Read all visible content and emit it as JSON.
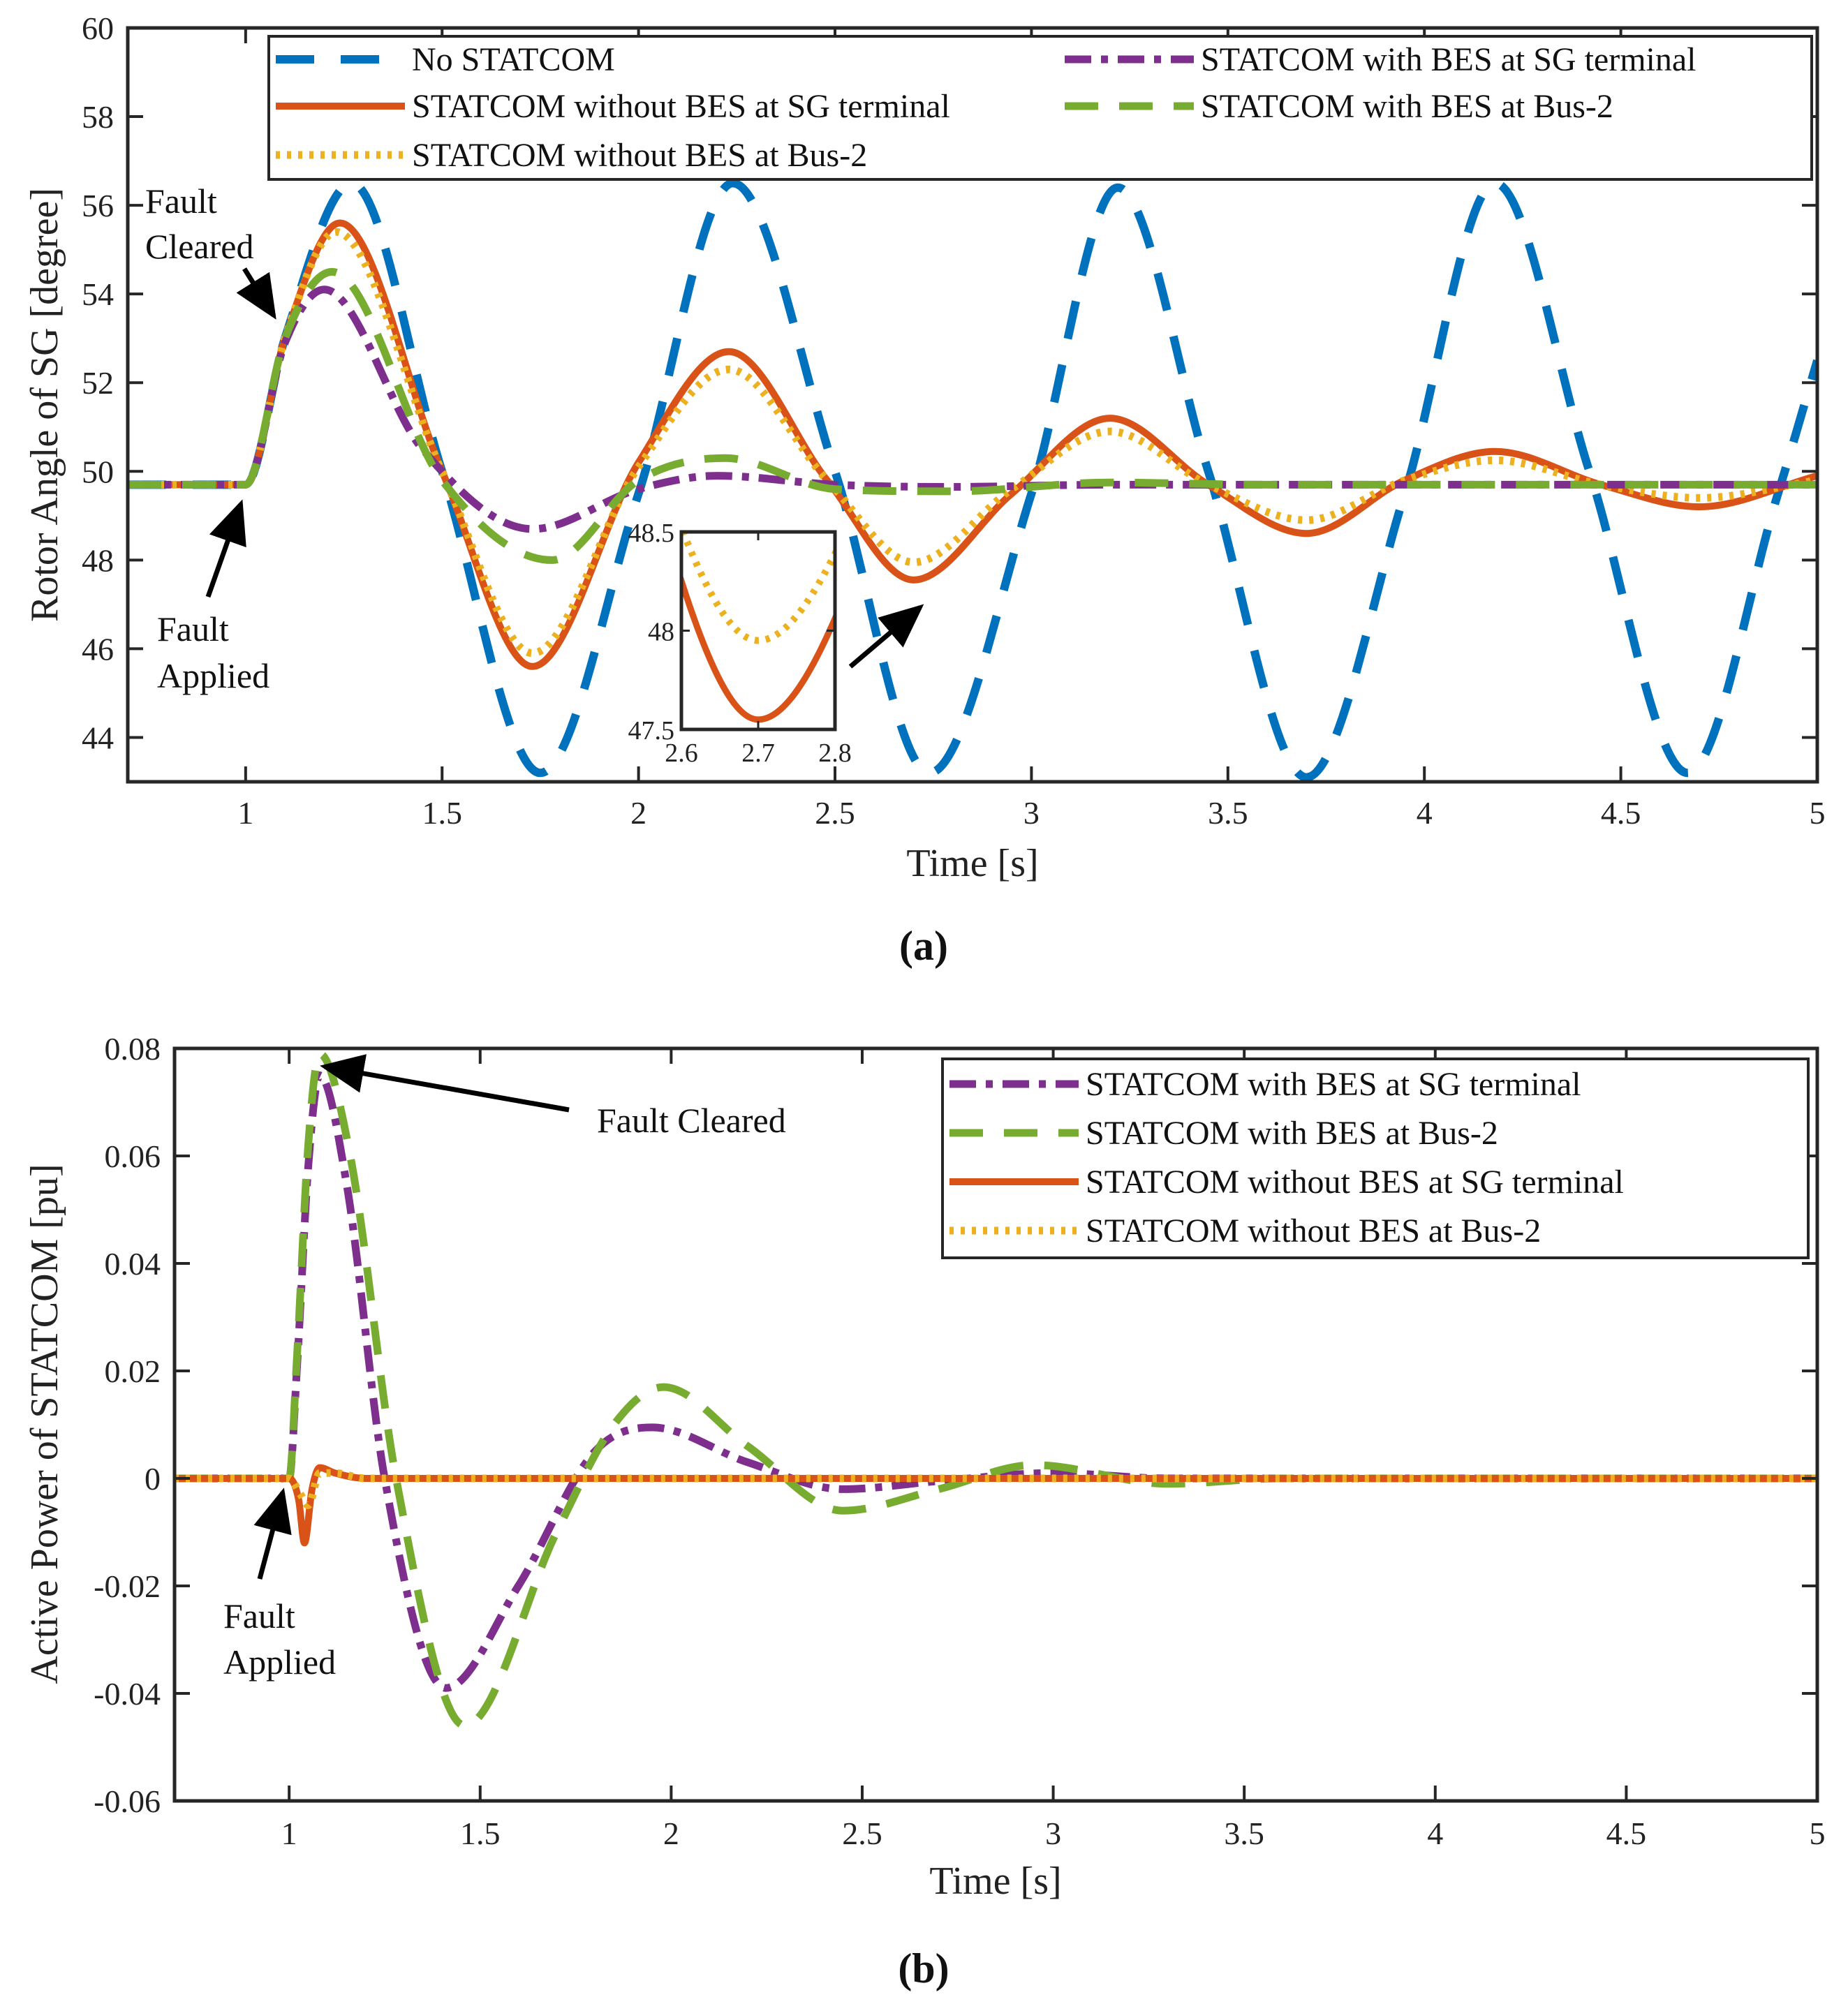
{
  "figure": {
    "panels": [
      "(a)",
      "(b)"
    ]
  },
  "colors": {
    "no_statcom": "#0072BD",
    "with_bes_sg": "#7E2F8E",
    "with_bes_bus2": "#77AC30",
    "without_bes_sg": "#D95319",
    "without_bes_bus2": "#EDB120"
  },
  "chart_data": [
    {
      "type": "line",
      "panel_label": "(a)",
      "xlabel": "Time [s]",
      "ylabel": "Rotor Angle of SG [degree]",
      "xlim": [
        0.7,
        5
      ],
      "ylim": [
        43,
        60
      ],
      "xticks": [
        "1",
        "1.5",
        "2",
        "2.5",
        "3",
        "3.5",
        "4",
        "4.5",
        "5"
      ],
      "yticks": [
        "44",
        "46",
        "48",
        "50",
        "52",
        "54",
        "56",
        "58",
        "60"
      ],
      "series": [
        {
          "key": "no_statcom",
          "name": "No STATCOM",
          "x": [
            0.7,
            1.0,
            1.1,
            1.27,
            1.5,
            1.75,
            2.0,
            2.24,
            2.5,
            2.74,
            3.0,
            3.22,
            3.45,
            3.7,
            3.95,
            4.18,
            4.42,
            4.67,
            4.9,
            5.0
          ],
          "y": [
            49.7,
            49.7,
            53.0,
            56.5,
            50.0,
            43.2,
            49.5,
            56.5,
            50.0,
            43.2,
            49.5,
            56.4,
            50.0,
            43.1,
            49.5,
            56.5,
            50.0,
            43.2,
            49.5,
            52.5
          ]
        },
        {
          "key": "without_bes_sg",
          "name": "STATCOM without BES at SG terminal",
          "x": [
            0.7,
            1.0,
            1.1,
            1.24,
            1.5,
            1.73,
            2.0,
            2.23,
            2.48,
            2.7,
            2.95,
            3.2,
            3.45,
            3.7,
            3.95,
            4.18,
            4.45,
            4.7,
            5.0
          ],
          "y": [
            49.7,
            49.7,
            53.0,
            55.6,
            50.0,
            45.6,
            50.2,
            52.7,
            49.8,
            47.55,
            49.5,
            51.2,
            49.7,
            48.6,
            49.8,
            50.45,
            49.7,
            49.2,
            49.9
          ]
        },
        {
          "key": "without_bes_bus2",
          "name": "STATCOM without BES at Bus-2",
          "x": [
            0.7,
            1.0,
            1.1,
            1.23,
            1.5,
            1.73,
            2.0,
            2.23,
            2.48,
            2.7,
            2.95,
            3.2,
            3.45,
            3.7,
            3.95,
            4.18,
            4.45,
            4.7,
            5.0
          ],
          "y": [
            49.7,
            49.7,
            53.0,
            55.4,
            50.0,
            45.9,
            50.1,
            52.3,
            49.8,
            47.95,
            49.6,
            50.9,
            49.7,
            48.9,
            49.8,
            50.25,
            49.7,
            49.4,
            49.8
          ]
        },
        {
          "key": "with_bes_sg",
          "name": "STATCOM with BES at SG terminal",
          "x": [
            0.7,
            1.0,
            1.1,
            1.2,
            1.45,
            1.73,
            2.0,
            2.2,
            2.5,
            2.8,
            3.2,
            3.6,
            4.0,
            5.0
          ],
          "y": [
            49.7,
            49.7,
            52.9,
            54.1,
            50.5,
            48.7,
            49.6,
            49.9,
            49.7,
            49.65,
            49.7,
            49.7,
            49.7,
            49.7
          ]
        },
        {
          "key": "with_bes_bus2",
          "name": "STATCOM with BES at Bus-2",
          "x": [
            0.7,
            1.0,
            1.1,
            1.22,
            1.5,
            1.78,
            2.0,
            2.22,
            2.5,
            2.8,
            3.2,
            3.6,
            4.0,
            5.0
          ],
          "y": [
            49.7,
            49.7,
            53.0,
            54.5,
            49.8,
            48.0,
            49.8,
            50.3,
            49.6,
            49.55,
            49.75,
            49.7,
            49.7,
            49.7
          ]
        }
      ],
      "legend": [
        {
          "key": "no_statcom",
          "label": "No STATCOM"
        },
        {
          "key": "with_bes_sg",
          "label": "STATCOM with BES at SG terminal"
        },
        {
          "key": "without_bes_sg",
          "label": "STATCOM without BES at SG terminal"
        },
        {
          "key": "with_bes_bus2",
          "label": "STATCOM with BES at Bus-2"
        },
        {
          "key": "without_bes_bus2",
          "label": "STATCOM without BES at Bus-2"
        }
      ],
      "annotations": {
        "fault_cleared": [
          "Fault",
          "Cleared"
        ],
        "fault_applied": [
          "Fault",
          "Applied"
        ]
      },
      "inset": {
        "xlim": [
          2.6,
          2.8
        ],
        "ylim": [
          47.5,
          48.5
        ],
        "xticks": [
          "2.6",
          "2.7",
          "2.8"
        ],
        "yticks": [
          "47.5",
          "48",
          "48.5"
        ]
      }
    },
    {
      "type": "line",
      "panel_label": "(b)",
      "xlabel": "Time [s]",
      "ylabel": "Active Power of STATCOM [pu]",
      "xlim": [
        0.7,
        5
      ],
      "ylim": [
        -0.06,
        0.08
      ],
      "xticks": [
        "1",
        "1.5",
        "2",
        "2.5",
        "3",
        "3.5",
        "4",
        "4.5",
        "5"
      ],
      "yticks": [
        "-0.06",
        "-0.04",
        "-0.02",
        "0",
        "0.02",
        "0.04",
        "0.06",
        "0.08"
      ],
      "series": [
        {
          "key": "with_bes_sg",
          "name": "STATCOM with BES at SG terminal",
          "x": [
            0.7,
            1.0,
            1.02,
            1.05,
            1.08,
            1.15,
            1.25,
            1.41,
            1.6,
            1.8,
            1.95,
            2.2,
            2.45,
            2.7,
            3.0,
            3.3,
            3.6,
            4.0,
            5.0
          ],
          "y": [
            0,
            0,
            0.02,
            0.058,
            0.075,
            0.055,
            0.0,
            -0.039,
            -0.02,
            0.005,
            0.0095,
            0.003,
            -0.002,
            -0.0005,
            0.001,
            0.0,
            0.0,
            0.0,
            0
          ]
        },
        {
          "key": "with_bes_bus2",
          "name": "STATCOM with BES at Bus-2",
          "x": [
            0.7,
            1.0,
            1.02,
            1.05,
            1.08,
            1.16,
            1.28,
            1.46,
            1.7,
            1.85,
            1.98,
            2.2,
            2.45,
            2.7,
            2.95,
            3.3,
            3.6,
            4.0,
            5.0
          ],
          "y": [
            0,
            0,
            0.022,
            0.062,
            0.079,
            0.06,
            0.0,
            -0.046,
            -0.01,
            0.01,
            0.017,
            0.006,
            -0.006,
            -0.002,
            0.0025,
            -0.001,
            0.0,
            0.0,
            0
          ]
        },
        {
          "key": "without_bes_sg",
          "name": "STATCOM without BES at SG terminal",
          "x": [
            0.7,
            1.0,
            1.025,
            1.04,
            1.06,
            1.08,
            1.12,
            1.2,
            1.5,
            5.0
          ],
          "y": [
            0,
            0,
            -0.004,
            -0.012,
            -0.002,
            0.002,
            0.001,
            0,
            0,
            0
          ]
        },
        {
          "key": "without_bes_bus2",
          "name": "STATCOM without BES at Bus-2",
          "x": [
            0.7,
            1.0,
            1.03,
            1.05,
            1.08,
            1.12,
            1.2,
            1.5,
            5.0
          ],
          "y": [
            0,
            0,
            -0.003,
            -0.005,
            0.001,
            0.001,
            0,
            0,
            0
          ]
        }
      ],
      "legend": [
        {
          "key": "with_bes_sg",
          "label": "STATCOM with BES at SG terminal"
        },
        {
          "key": "with_bes_bus2",
          "label": "STATCOM with BES at Bus-2"
        },
        {
          "key": "without_bes_sg",
          "label": "STATCOM without BES at SG terminal"
        },
        {
          "key": "without_bes_bus2",
          "label": "STATCOM without BES at Bus-2"
        }
      ],
      "annotations": {
        "fault_cleared": [
          "Fault Cleared"
        ],
        "fault_applied": [
          "Fault",
          "Applied"
        ]
      }
    }
  ]
}
